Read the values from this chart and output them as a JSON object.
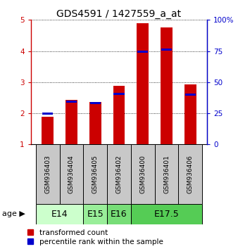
{
  "title": "GDS4591 / 1427559_a_at",
  "samples": [
    "GSM936403",
    "GSM936404",
    "GSM936405",
    "GSM936402",
    "GSM936400",
    "GSM936401",
    "GSM936406"
  ],
  "red_values": [
    1.88,
    2.44,
    2.37,
    2.88,
    4.9,
    4.75,
    2.92
  ],
  "blue_values": [
    2.0,
    2.37,
    2.33,
    2.63,
    3.98,
    4.05,
    2.6
  ],
  "age_groups": [
    {
      "label": "E14",
      "start": 0,
      "end": 2,
      "color": "#ccffcc"
    },
    {
      "label": "E15",
      "start": 2,
      "end": 3,
      "color": "#99ee99"
    },
    {
      "label": "E16",
      "start": 3,
      "end": 4,
      "color": "#77dd77"
    },
    {
      "label": "E17.5",
      "start": 4,
      "end": 7,
      "color": "#55cc55"
    }
  ],
  "ylim_left": [
    1,
    5
  ],
  "ylim_right": [
    0,
    100
  ],
  "yticks_left": [
    1,
    2,
    3,
    4,
    5
  ],
  "yticks_right": [
    0,
    25,
    50,
    75,
    100
  ],
  "ytick_labels_right": [
    "0",
    "25",
    "50",
    "75",
    "100%"
  ],
  "red_color": "#cc0000",
  "blue_color": "#0000cc",
  "bar_width": 0.5,
  "sample_bg_color": "#c8c8c8",
  "title_fontsize": 10,
  "tick_fontsize": 7.5,
  "legend_fontsize": 7.5,
  "sample_label_fontsize": 6.5,
  "age_label_fontsize": 9
}
